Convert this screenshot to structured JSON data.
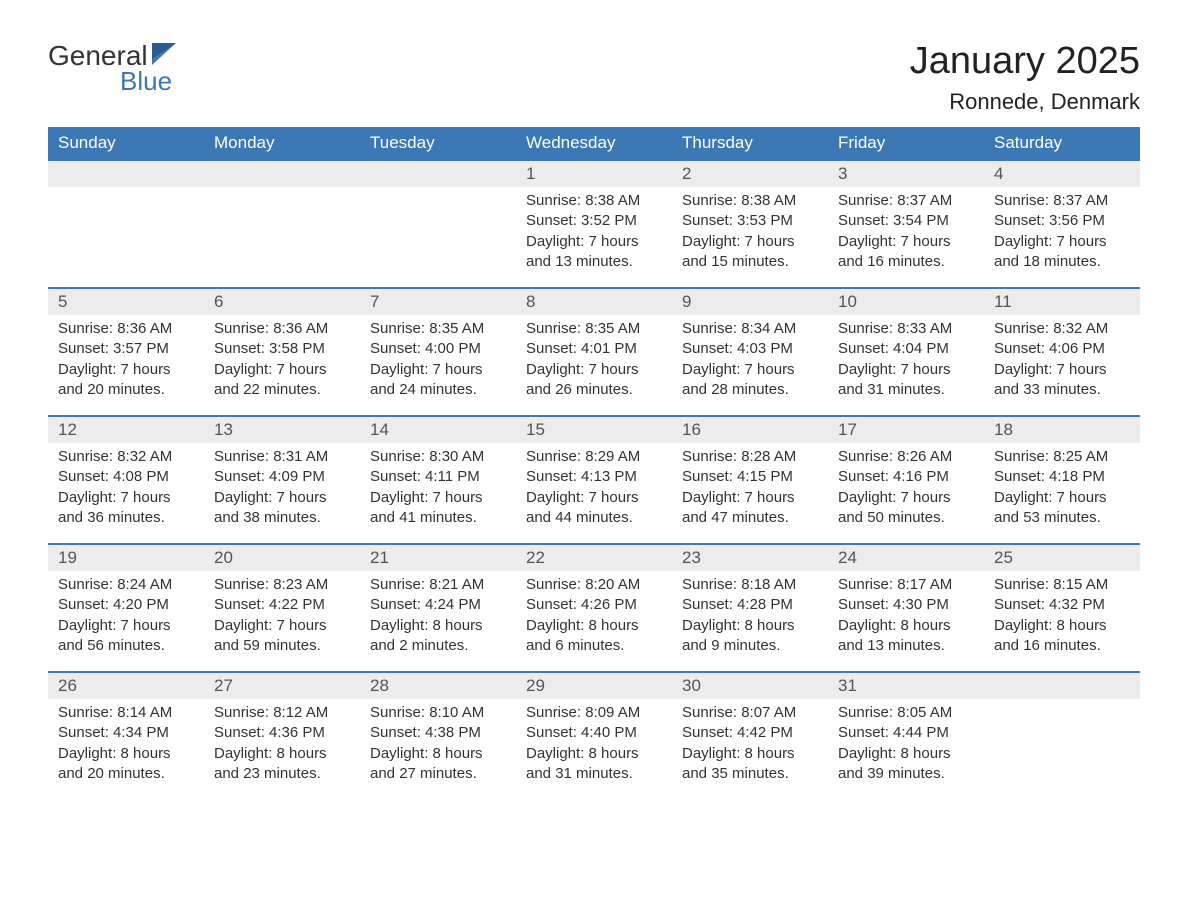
{
  "logo": {
    "text_general": "General",
    "text_blue": "Blue"
  },
  "title": "January 2025",
  "location": "Ronnede, Denmark",
  "colors": {
    "header_bg": "#3b78b5",
    "header_text": "#ffffff",
    "daynum_bg": "#ececec",
    "body_text": "#333333",
    "page_bg": "#ffffff"
  },
  "typography": {
    "title_fontsize": 38,
    "location_fontsize": 22,
    "dayheader_fontsize": 17,
    "body_fontsize": 15
  },
  "day_headers": [
    "Sunday",
    "Monday",
    "Tuesday",
    "Wednesday",
    "Thursday",
    "Friday",
    "Saturday"
  ],
  "weeks": [
    [
      null,
      null,
      null,
      {
        "n": "1",
        "sunrise": "8:38 AM",
        "sunset": "3:52 PM",
        "daylight": "7 hours and 13 minutes."
      },
      {
        "n": "2",
        "sunrise": "8:38 AM",
        "sunset": "3:53 PM",
        "daylight": "7 hours and 15 minutes."
      },
      {
        "n": "3",
        "sunrise": "8:37 AM",
        "sunset": "3:54 PM",
        "daylight": "7 hours and 16 minutes."
      },
      {
        "n": "4",
        "sunrise": "8:37 AM",
        "sunset": "3:56 PM",
        "daylight": "7 hours and 18 minutes."
      }
    ],
    [
      {
        "n": "5",
        "sunrise": "8:36 AM",
        "sunset": "3:57 PM",
        "daylight": "7 hours and 20 minutes."
      },
      {
        "n": "6",
        "sunrise": "8:36 AM",
        "sunset": "3:58 PM",
        "daylight": "7 hours and 22 minutes."
      },
      {
        "n": "7",
        "sunrise": "8:35 AM",
        "sunset": "4:00 PM",
        "daylight": "7 hours and 24 minutes."
      },
      {
        "n": "8",
        "sunrise": "8:35 AM",
        "sunset": "4:01 PM",
        "daylight": "7 hours and 26 minutes."
      },
      {
        "n": "9",
        "sunrise": "8:34 AM",
        "sunset": "4:03 PM",
        "daylight": "7 hours and 28 minutes."
      },
      {
        "n": "10",
        "sunrise": "8:33 AM",
        "sunset": "4:04 PM",
        "daylight": "7 hours and 31 minutes."
      },
      {
        "n": "11",
        "sunrise": "8:32 AM",
        "sunset": "4:06 PM",
        "daylight": "7 hours and 33 minutes."
      }
    ],
    [
      {
        "n": "12",
        "sunrise": "8:32 AM",
        "sunset": "4:08 PM",
        "daylight": "7 hours and 36 minutes."
      },
      {
        "n": "13",
        "sunrise": "8:31 AM",
        "sunset": "4:09 PM",
        "daylight": "7 hours and 38 minutes."
      },
      {
        "n": "14",
        "sunrise": "8:30 AM",
        "sunset": "4:11 PM",
        "daylight": "7 hours and 41 minutes."
      },
      {
        "n": "15",
        "sunrise": "8:29 AM",
        "sunset": "4:13 PM",
        "daylight": "7 hours and 44 minutes."
      },
      {
        "n": "16",
        "sunrise": "8:28 AM",
        "sunset": "4:15 PM",
        "daylight": "7 hours and 47 minutes."
      },
      {
        "n": "17",
        "sunrise": "8:26 AM",
        "sunset": "4:16 PM",
        "daylight": "7 hours and 50 minutes."
      },
      {
        "n": "18",
        "sunrise": "8:25 AM",
        "sunset": "4:18 PM",
        "daylight": "7 hours and 53 minutes."
      }
    ],
    [
      {
        "n": "19",
        "sunrise": "8:24 AM",
        "sunset": "4:20 PM",
        "daylight": "7 hours and 56 minutes."
      },
      {
        "n": "20",
        "sunrise": "8:23 AM",
        "sunset": "4:22 PM",
        "daylight": "7 hours and 59 minutes."
      },
      {
        "n": "21",
        "sunrise": "8:21 AM",
        "sunset": "4:24 PM",
        "daylight": "8 hours and 2 minutes."
      },
      {
        "n": "22",
        "sunrise": "8:20 AM",
        "sunset": "4:26 PM",
        "daylight": "8 hours and 6 minutes."
      },
      {
        "n": "23",
        "sunrise": "8:18 AM",
        "sunset": "4:28 PM",
        "daylight": "8 hours and 9 minutes."
      },
      {
        "n": "24",
        "sunrise": "8:17 AM",
        "sunset": "4:30 PM",
        "daylight": "8 hours and 13 minutes."
      },
      {
        "n": "25",
        "sunrise": "8:15 AM",
        "sunset": "4:32 PM",
        "daylight": "8 hours and 16 minutes."
      }
    ],
    [
      {
        "n": "26",
        "sunrise": "8:14 AM",
        "sunset": "4:34 PM",
        "daylight": "8 hours and 20 minutes."
      },
      {
        "n": "27",
        "sunrise": "8:12 AM",
        "sunset": "4:36 PM",
        "daylight": "8 hours and 23 minutes."
      },
      {
        "n": "28",
        "sunrise": "8:10 AM",
        "sunset": "4:38 PM",
        "daylight": "8 hours and 27 minutes."
      },
      {
        "n": "29",
        "sunrise": "8:09 AM",
        "sunset": "4:40 PM",
        "daylight": "8 hours and 31 minutes."
      },
      {
        "n": "30",
        "sunrise": "8:07 AM",
        "sunset": "4:42 PM",
        "daylight": "8 hours and 35 minutes."
      },
      {
        "n": "31",
        "sunrise": "8:05 AM",
        "sunset": "4:44 PM",
        "daylight": "8 hours and 39 minutes."
      },
      null
    ]
  ],
  "labels": {
    "sunrise": "Sunrise: ",
    "sunset": "Sunset: ",
    "daylight": "Daylight: "
  }
}
